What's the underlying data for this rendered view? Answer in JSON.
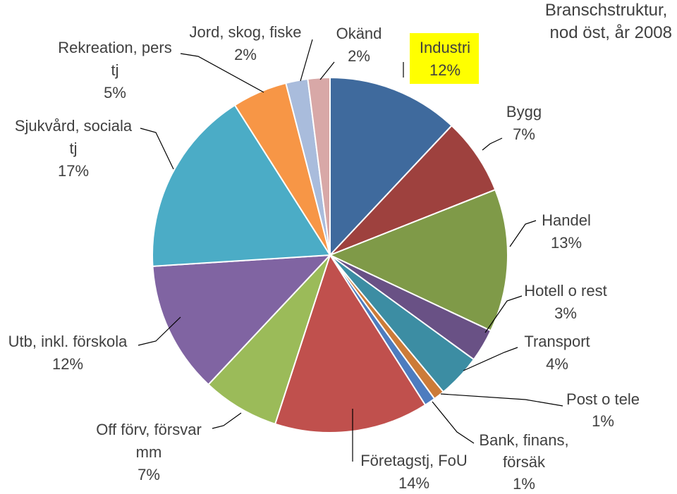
{
  "chart_data": {
    "type": "pie",
    "title": "Branschstruktur, nod öst, år 2008",
    "title_lines": [
      "Branschstruktur,",
      "nod öst, år 2008"
    ],
    "highlight_color": "#ffff00",
    "slices": [
      {
        "label": "Industri",
        "value": 12,
        "pct": "12%",
        "color": "#3f6a9d",
        "highlight": true
      },
      {
        "label": "Bygg",
        "value": 7,
        "pct": "7%",
        "color": "#9e413e"
      },
      {
        "label": "Handel",
        "value": 13,
        "pct": "13%",
        "color": "#7f9a48"
      },
      {
        "label": "Hotell o rest",
        "value": 3,
        "pct": "3%",
        "color": "#695185"
      },
      {
        "label": "Transport",
        "value": 4,
        "pct": "4%",
        "color": "#3c8da3"
      },
      {
        "label": "Post o tele",
        "value": 1,
        "pct": "1%",
        "color": "#cc7b38"
      },
      {
        "label": "Bank, finans, försäk",
        "value": 1,
        "pct": "1%",
        "color": "#4d7cbf"
      },
      {
        "label": "Företagstj, FoU",
        "value": 14,
        "pct": "14%",
        "color": "#c0504d"
      },
      {
        "label": "Off förv, försvar mm",
        "value": 7,
        "pct": "7%",
        "color": "#9bbb59"
      },
      {
        "label": "Utb, inkl. förskola",
        "value": 12,
        "pct": "12%",
        "color": "#8064a2"
      },
      {
        "label": "Sjukvård, sociala tj",
        "value": 17,
        "pct": "17%",
        "color": "#4bacc6"
      },
      {
        "label": "Rekreation, pers tj",
        "value": 5,
        "pct": "5%",
        "color": "#f79646"
      },
      {
        "label": "Jord, skog, fiske",
        "value": 2,
        "pct": "2%",
        "color": "#a9bcdc"
      },
      {
        "label": "Okänd",
        "value": 2,
        "pct": "2%",
        "color": "#d8a8a7"
      }
    ],
    "labels": [
      {
        "lines": [
          "Industri",
          "12%"
        ]
      },
      {
        "lines": [
          "Bygg",
          "7%"
        ]
      },
      {
        "lines": [
          "Handel",
          "13%"
        ]
      },
      {
        "lines": [
          "Hotell o rest",
          "3%"
        ]
      },
      {
        "lines": [
          "Transport",
          "4%"
        ]
      },
      {
        "lines": [
          "Post o tele",
          "1%"
        ]
      },
      {
        "lines": [
          "Bank, finans,",
          "försäk",
          "1%"
        ]
      },
      {
        "lines": [
          "Företagstj, FoU",
          "14%"
        ]
      },
      {
        "lines": [
          "Off förv, försvar",
          "mm",
          "7%"
        ]
      },
      {
        "lines": [
          "Utb, inkl. förskola",
          "12%"
        ]
      },
      {
        "lines": [
          "Sjukvård, sociala",
          "tj",
          "17%"
        ]
      },
      {
        "lines": [
          "Rekreation, pers",
          "tj",
          "5%"
        ]
      },
      {
        "lines": [
          "Jord, skog, fiske",
          "2%"
        ]
      },
      {
        "lines": [
          "Okänd",
          "2%"
        ]
      }
    ]
  }
}
